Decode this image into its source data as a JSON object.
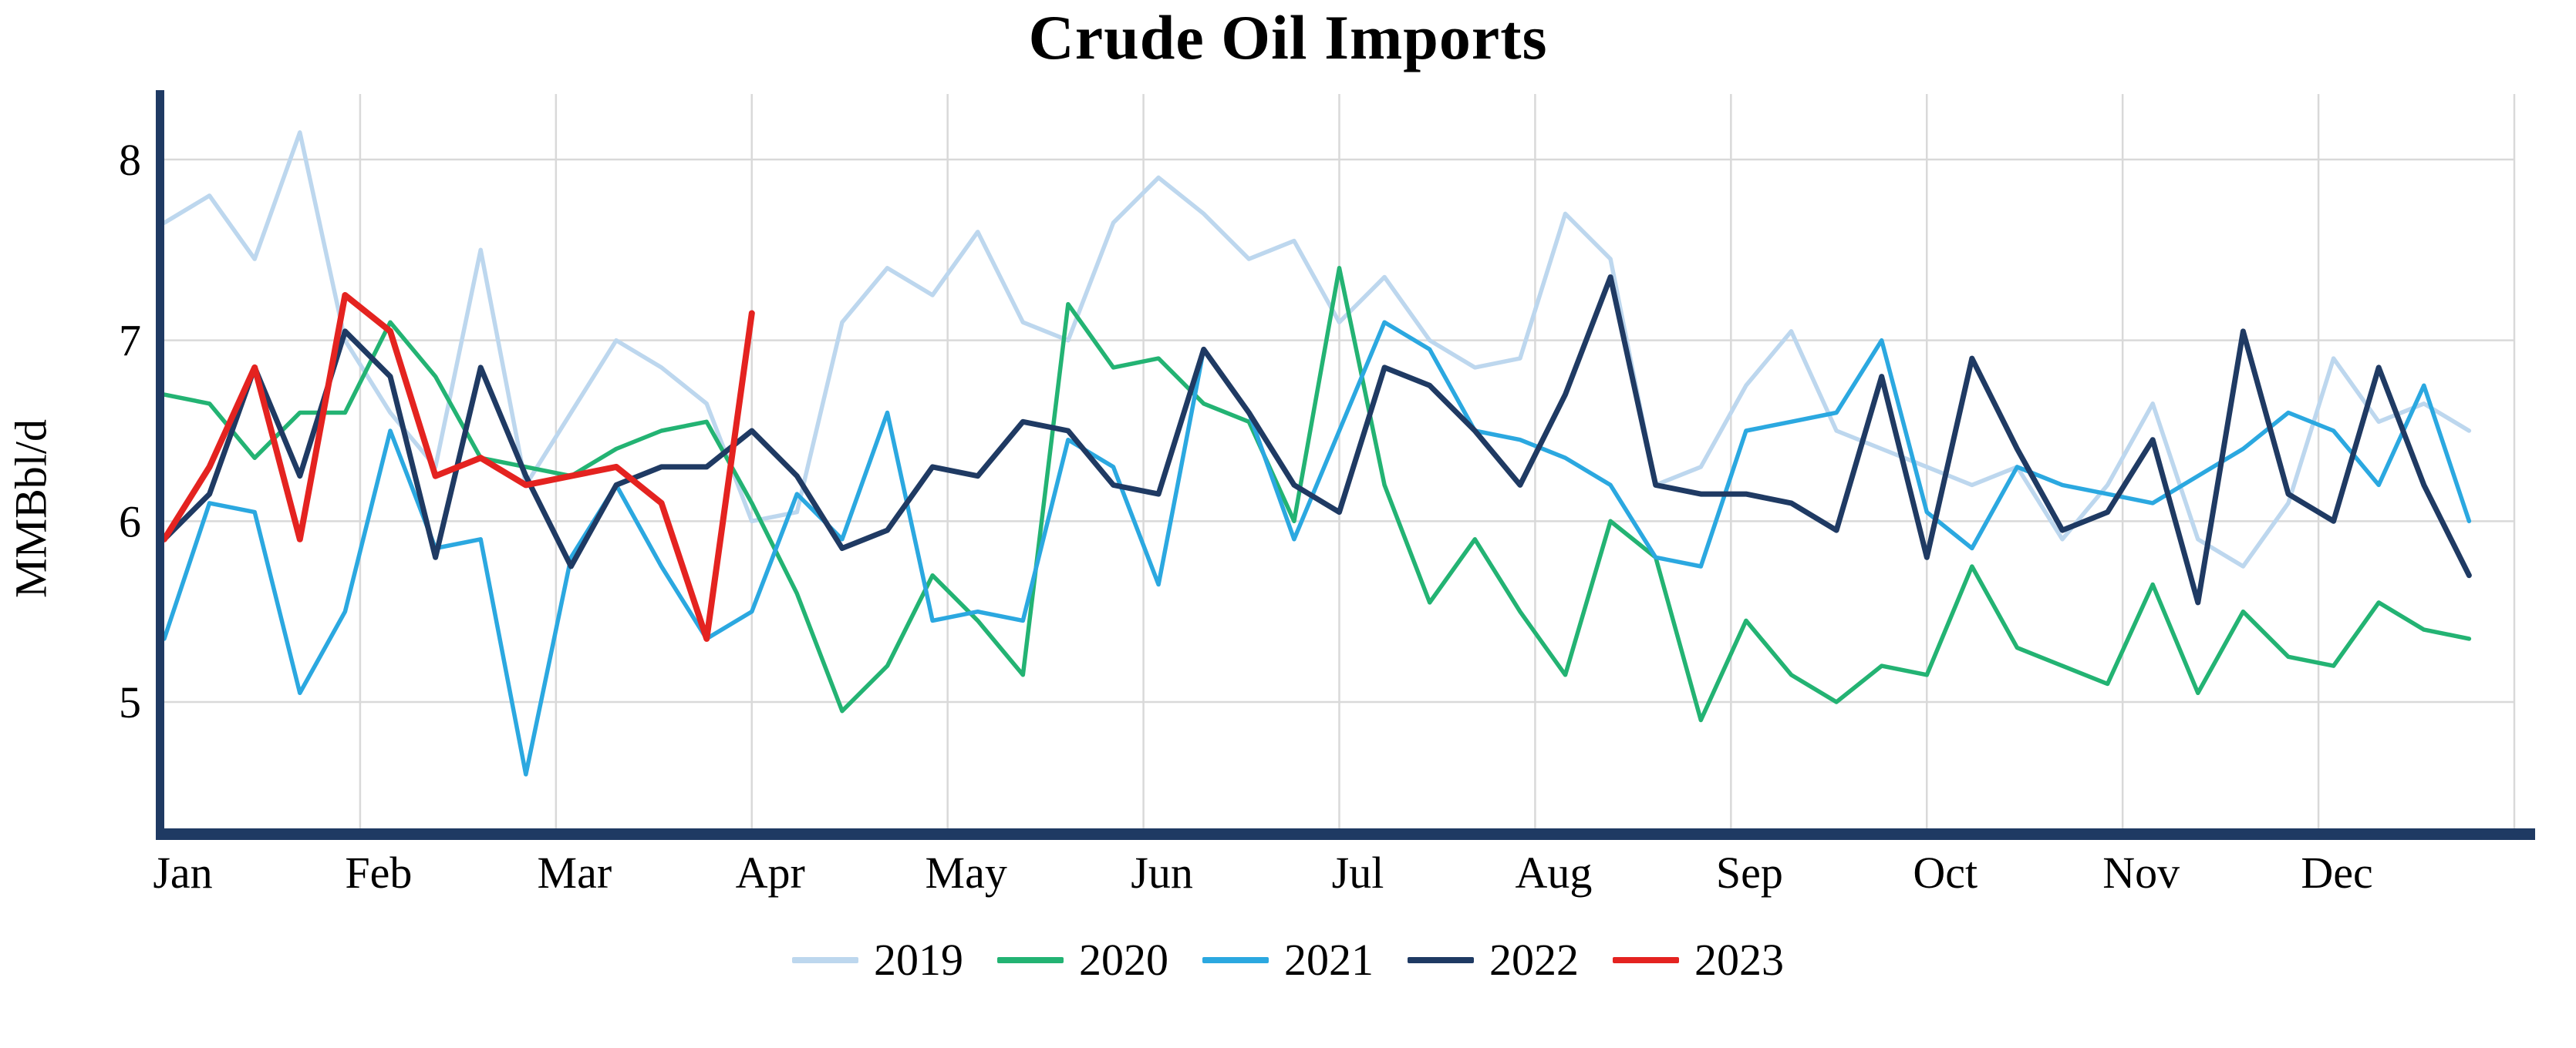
{
  "chart_data": {
    "type": "line",
    "title": "Crude Oil Imports",
    "ylabel": "MMBbl/d",
    "xlabel": "",
    "x_unit": "week of year (weekly data, 52 weeks per full year)",
    "months": [
      "Jan",
      "Feb",
      "Mar",
      "Apr",
      "May",
      "Jun",
      "Jul",
      "Aug",
      "Sep",
      "Oct",
      "Nov",
      "Dec"
    ],
    "y_ticks": [
      5,
      6,
      7,
      8
    ],
    "ylim": [
      4.3,
      8.4
    ],
    "grid": true,
    "legend_position": "bottom",
    "axis_color": "#1f3a63",
    "grid_color": "#d9d9d9",
    "background_color": "#ffffff",
    "series": [
      {
        "name": "2019",
        "color": "#bdd7ee",
        "values": [
          7.65,
          7.8,
          7.45,
          8.15,
          7.0,
          6.6,
          6.3,
          7.5,
          6.2,
          6.6,
          7.0,
          6.85,
          6.65,
          6.0,
          6.05,
          7.1,
          7.4,
          7.25,
          7.6,
          7.1,
          7.0,
          7.65,
          7.9,
          7.7,
          7.45,
          7.55,
          7.1,
          7.35,
          7.0,
          6.85,
          6.9,
          7.7,
          7.45,
          6.2,
          6.3,
          6.75,
          7.05,
          6.5,
          6.4,
          6.3,
          6.2,
          6.3,
          5.9,
          6.2,
          6.65,
          5.9,
          5.75,
          6.1,
          6.9,
          6.55,
          6.65,
          6.5
        ]
      },
      {
        "name": "2020",
        "color": "#23b373",
        "values": [
          6.7,
          6.65,
          6.35,
          6.6,
          6.6,
          7.1,
          6.8,
          6.35,
          6.3,
          6.25,
          6.4,
          6.5,
          6.55,
          6.1,
          5.6,
          4.95,
          5.2,
          5.7,
          5.45,
          5.15,
          7.2,
          6.85,
          6.9,
          6.65,
          6.55,
          6.0,
          7.4,
          6.2,
          5.55,
          5.9,
          5.5,
          5.15,
          6.0,
          5.8,
          4.9,
          5.45,
          5.15,
          5.0,
          5.2,
          5.15,
          5.75,
          5.3,
          5.2,
          5.1,
          5.65,
          5.05,
          5.5,
          5.25,
          5.2,
          5.55,
          5.4,
          5.35
        ]
      },
      {
        "name": "2021",
        "color": "#2ba8e0",
        "values": [
          5.35,
          6.1,
          6.05,
          5.05,
          5.5,
          6.5,
          5.85,
          5.9,
          4.6,
          5.8,
          6.2,
          5.75,
          5.35,
          5.5,
          6.15,
          5.9,
          6.6,
          5.45,
          5.5,
          5.45,
          6.45,
          6.3,
          5.65,
          6.95,
          6.6,
          5.9,
          6.5,
          7.1,
          6.95,
          6.5,
          6.45,
          6.35,
          6.2,
          5.8,
          5.75,
          6.5,
          6.55,
          6.6,
          7.0,
          6.05,
          5.85,
          6.3,
          6.2,
          6.15,
          6.1,
          6.25,
          6.4,
          6.6,
          6.5,
          6.2,
          6.75,
          6.0
        ]
      },
      {
        "name": "2022",
        "color": "#1f3a63",
        "values": [
          5.9,
          6.15,
          6.85,
          6.25,
          7.05,
          6.8,
          5.8,
          6.85,
          6.25,
          5.75,
          6.2,
          6.3,
          6.3,
          6.5,
          6.25,
          5.85,
          5.95,
          6.3,
          6.25,
          6.55,
          6.5,
          6.2,
          6.15,
          6.95,
          6.6,
          6.2,
          6.05,
          6.85,
          6.75,
          6.5,
          6.2,
          6.7,
          7.35,
          6.2,
          6.15,
          6.15,
          6.1,
          5.95,
          6.8,
          5.8,
          6.9,
          6.4,
          5.95,
          6.05,
          6.45,
          5.55,
          7.05,
          6.15,
          6.0,
          6.85,
          6.2,
          5.7
        ]
      },
      {
        "name": "2023",
        "color": "#e42320",
        "values": [
          5.9,
          6.3,
          6.85,
          5.9,
          7.25,
          7.05,
          6.25,
          6.35,
          6.2,
          6.25,
          6.3,
          6.1,
          5.35,
          7.15
        ]
      }
    ]
  }
}
